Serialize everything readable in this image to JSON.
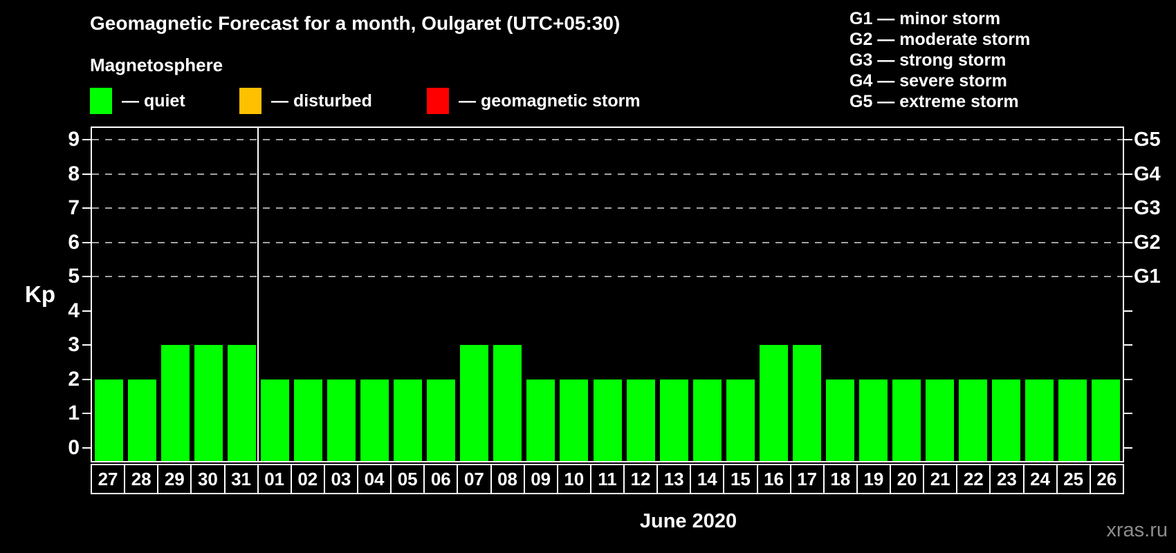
{
  "title": "Geomagnetic Forecast for a month, Oulgaret (UTC+05:30)",
  "subtitle": "Magnetosphere",
  "legend": {
    "items": [
      {
        "name": "quiet",
        "label": "— quiet",
        "color": "#00ff00"
      },
      {
        "name": "disturbed",
        "label": "— disturbed",
        "color": "#ffc000"
      },
      {
        "name": "geomagnetic-storm",
        "label": "— geomagnetic storm",
        "color": "#ff0000"
      }
    ]
  },
  "storm_scale_legend": {
    "items": [
      "G1 — minor storm",
      "G2 — moderate storm",
      "G3 — strong storm",
      "G4 — severe storm",
      "G5 — extreme storm"
    ]
  },
  "watermark": "xras.ru",
  "colors": {
    "background": "#000000",
    "bar": "#00ff00",
    "axis": "#ffffff",
    "gridline": "#a3a3a3",
    "watermark": "#8c8c8c"
  },
  "chart_data": {
    "type": "bar",
    "title": "Geomagnetic Forecast for a month, Oulgaret (UTC+05:30)",
    "ylabel": "Kp",
    "xlabel": "June 2020",
    "categories": [
      "27",
      "28",
      "29",
      "30",
      "31",
      "01",
      "02",
      "03",
      "04",
      "05",
      "06",
      "07",
      "08",
      "09",
      "10",
      "11",
      "12",
      "13",
      "14",
      "15",
      "16",
      "17",
      "18",
      "19",
      "20",
      "21",
      "22",
      "23",
      "24",
      "25",
      "26"
    ],
    "values": [
      2,
      2,
      3,
      3,
      3,
      2,
      2,
      2,
      2,
      2,
      2,
      3,
      3,
      2,
      2,
      2,
      2,
      2,
      2,
      2,
      3,
      3,
      2,
      2,
      2,
      2,
      2,
      2,
      2,
      2,
      2
    ],
    "bar_color": "#00ff00",
    "ylim": [
      0,
      9
    ],
    "yticks": [
      0,
      1,
      2,
      3,
      4,
      5,
      6,
      7,
      8,
      9
    ],
    "grid_levels": [
      5,
      6,
      7,
      8,
      9
    ],
    "grid_style": "dashed-horizontal",
    "right_axis": [
      {
        "value": 5,
        "label": "G1"
      },
      {
        "value": 6,
        "label": "G2"
      },
      {
        "value": 7,
        "label": "G3"
      },
      {
        "value": 8,
        "label": "G4"
      },
      {
        "value": 9,
        "label": "G5"
      }
    ],
    "month_boundary_index": 5,
    "legend_position": "top-left"
  }
}
